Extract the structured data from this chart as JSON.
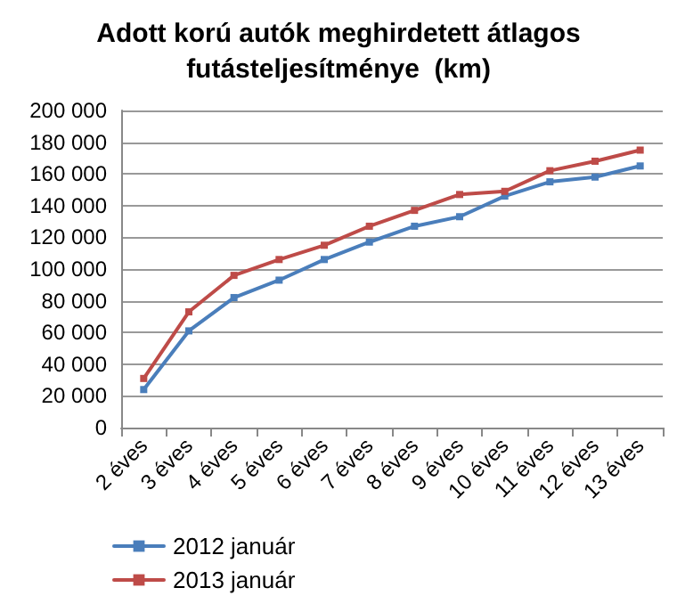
{
  "chart_data": {
    "type": "line",
    "title": "Adott korú autók meghirdetett átlagos\nfutásteljesítménye  (km)",
    "categories": [
      "2 éves",
      "3 éves",
      "4 éves",
      "5 éves",
      "6 éves",
      "7 éves",
      "8 éves",
      "9 éves",
      "10 éves",
      "11 éves",
      "12 éves",
      "13 éves"
    ],
    "series": [
      {
        "name": "2012 január",
        "color": "#4a7ebb",
        "values": [
          24000,
          61000,
          82000,
          93000,
          106000,
          117000,
          127000,
          133000,
          146000,
          155000,
          158000,
          165000
        ]
      },
      {
        "name": "2013 január",
        "color": "#be4b48",
        "values": [
          31000,
          73000,
          96000,
          106000,
          115000,
          127000,
          137000,
          147000,
          149000,
          162000,
          168000,
          175000
        ]
      }
    ],
    "ylim": [
      0,
      200000
    ],
    "yticks": [
      {
        "value": 0,
        "label": "0"
      },
      {
        "value": 20000,
        "label": "20 000"
      },
      {
        "value": 40000,
        "label": "40 000"
      },
      {
        "value": 60000,
        "label": "60 000"
      },
      {
        "value": 80000,
        "label": "80 000"
      },
      {
        "value": 100000,
        "label": "100 000"
      },
      {
        "value": 120000,
        "label": "120 000"
      },
      {
        "value": 140000,
        "label": "140 000"
      },
      {
        "value": 160000,
        "label": "160 000"
      },
      {
        "value": 180000,
        "label": "180 000"
      },
      {
        "value": 200000,
        "label": "200 000"
      }
    ],
    "grid": "y",
    "legend": "bottom left",
    "marker": "square",
    "line_style": "solid"
  }
}
